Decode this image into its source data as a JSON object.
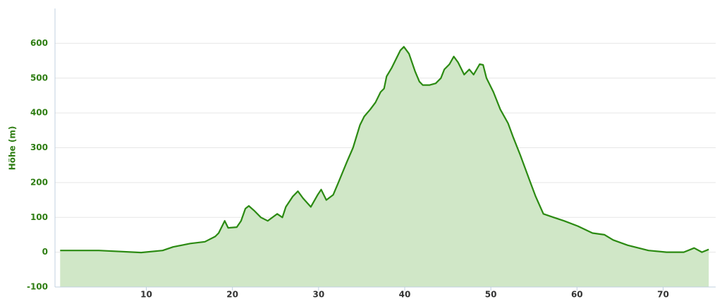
{
  "chart_data": {
    "type": "area",
    "y_axis_label": "Höhe (m)",
    "x": [
      0,
      4.5,
      9.4,
      11.9,
      13.1,
      15.1,
      16.8,
      18,
      18.4,
      19.1,
      19.5,
      20.5,
      21,
      21.5,
      21.9,
      22.5,
      23.3,
      24.1,
      25.2,
      25.8,
      26.2,
      27,
      27.6,
      28.2,
      29.1,
      29.9,
      30.3,
      30.9,
      31.7,
      32.3,
      33.3,
      34,
      34.8,
      35.3,
      36,
      36.6,
      37.2,
      37.6,
      37.9,
      38.5,
      39.1,
      39.5,
      39.9,
      40.5,
      41.2,
      41.7,
      42.1,
      42.9,
      43.6,
      44.2,
      44.6,
      45.2,
      45.7,
      46.2,
      46.9,
      47.5,
      48,
      48.7,
      49.1,
      49.5,
      50.3,
      51.1,
      52,
      52.6,
      53.4,
      54,
      54.6,
      55.2,
      56.1,
      57.3,
      58.5,
      60.1,
      61.8,
      63.2,
      64.2,
      65.9,
      68.3,
      70.4,
      72.4,
      73.6,
      74.5,
      75.3
    ],
    "values": [
      5,
      5,
      -1,
      5,
      15,
      25,
      30,
      45,
      55,
      90,
      70,
      72,
      90,
      125,
      133,
      120,
      100,
      90,
      110,
      100,
      130,
      160,
      175,
      155,
      130,
      165,
      180,
      150,
      165,
      200,
      260,
      300,
      365,
      390,
      410,
      430,
      460,
      470,
      505,
      530,
      560,
      580,
      590,
      570,
      520,
      490,
      480,
      480,
      485,
      500,
      525,
      540,
      562,
      545,
      510,
      525,
      510,
      540,
      538,
      500,
      460,
      410,
      370,
      330,
      280,
      240,
      200,
      160,
      110,
      100,
      90,
      75,
      55,
      50,
      35,
      20,
      5,
      0,
      0,
      12,
      0,
      8
    ],
    "line_color": "#2b8a12",
    "fill_color": "#d0e7c7",
    "xlim": [
      -0.6,
      76.1
    ],
    "xticks": [
      10,
      20,
      30,
      40,
      50,
      60,
      70
    ],
    "ylim": [
      -100,
      700
    ],
    "yticks": [
      -100,
      0,
      100,
      200,
      300,
      400,
      500,
      600
    ],
    "grid": true
  }
}
